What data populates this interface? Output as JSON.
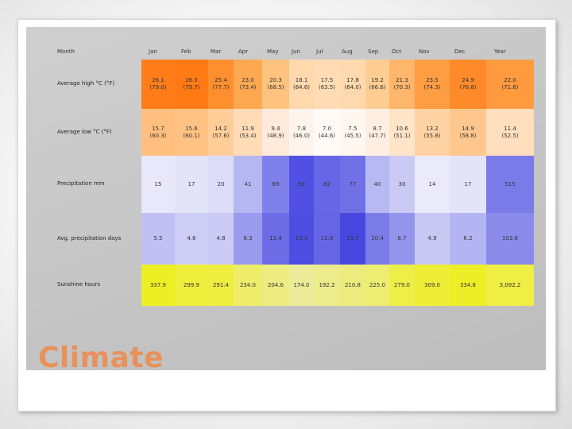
{
  "table": {
    "corner": "Month",
    "months": [
      "Jan",
      "Feb",
      "Mar",
      "Apr",
      "May",
      "Jun",
      "Jul",
      "Aug",
      "Sep",
      "Oct",
      "Nov",
      "Dec",
      "Year"
    ],
    "rows": [
      {
        "label": "Average high °C (°F)",
        "cells": [
          "26.1\n(79.0)",
          "26.5\n(79.7)",
          "25.4\n(77.7)",
          "23.0\n(73.4)",
          "20.3\n(68.5)",
          "18.1\n(64.6)",
          "17.5\n(63.5)",
          "17.8\n(64.0)",
          "19.2\n(66.6)",
          "21.3\n(70.3)",
          "23.5\n(74.3)",
          "24.9\n(76.8)",
          "22.0\n(71.6)"
        ],
        "colors": [
          "#ff7c18",
          "#ff7a14",
          "#ff8f2e",
          "#ffa852",
          "#ffc27f",
          "#ffd8ac",
          "#ffdcb4",
          "#ffd9ae",
          "#ffcc92",
          "#ffb56a",
          "#ff9d42",
          "#ff8a2a",
          "#ff9a3e"
        ]
      },
      {
        "label": "Average low °C (°F)",
        "cells": [
          "15.7\n(60.3)",
          "15.6\n(60.1)",
          "14.2\n(57.6)",
          "11.9\n(53.4)",
          "9.4\n(48.9)",
          "7.8\n(46.0)",
          "7.0\n(44.6)",
          "7.5\n(45.5)",
          "8.7\n(47.7)",
          "10.6\n(51.1)",
          "13.2\n(55.8)",
          "14.9\n(58.8)",
          "11.4\n(52.5)"
        ],
        "colors": [
          "#ffc07f",
          "#ffc282",
          "#ffcd98",
          "#ffdcb6",
          "#ffeadb",
          "#fff4ec",
          "#fffaf6",
          "#fff6ef",
          "#ffefe2",
          "#ffe4c8",
          "#ffd2a4",
          "#ffc78e",
          "#ffdfbd"
        ]
      },
      {
        "label": "Precipitation mm",
        "cells": [
          "15",
          "17",
          "20",
          "41",
          "69",
          "93",
          "82",
          "77",
          "40",
          "30",
          "14",
          "17",
          "515"
        ],
        "colors": [
          "#e8e8fa",
          "#e4e4f9",
          "#dcdcf8",
          "#b6b6f2",
          "#8080ea",
          "#5050e2",
          "#6666e6",
          "#7070e7",
          "#b8b8f2",
          "#cacaf5",
          "#eaeafa",
          "#e4e4f9",
          "#7a7ae8"
        ]
      },
      {
        "label": "Avg. precipitation days",
        "cells": [
          "5.5",
          "4.6",
          "4.8",
          "8.3",
          "11.4",
          "13.3",
          "11.8",
          "13.7",
          "10.4",
          "8.7",
          "4.9",
          "6.2",
          "103.6"
        ],
        "colors": [
          "#c0c0f4",
          "#cdcdf6",
          "#cacaf5",
          "#9a9aee",
          "#6c6ce6",
          "#4e4ee2",
          "#6666e5",
          "#4848e0",
          "#7c7ce8",
          "#9494ed",
          "#c8c8f5",
          "#b4b4f2",
          "#8a8aeb"
        ]
      },
      {
        "label": "Sunshine hours",
        "cells": [
          "337.9",
          "299.9",
          "291.4",
          "234.0",
          "204.6",
          "174.0",
          "192.2",
          "210.8",
          "225.0",
          "279.0",
          "309.0",
          "334.8",
          "3,092.2"
        ],
        "colors": [
          "#eeee24",
          "#eeee3c",
          "#eeee40",
          "#eded6a",
          "#ecec82",
          "#ebeb9a",
          "#ecec8c",
          "#ecec7e",
          "#eded74",
          "#eeee48",
          "#eeee36",
          "#eeee26",
          "#eeee44"
        ]
      }
    ]
  },
  "slide_title": "Climate"
}
